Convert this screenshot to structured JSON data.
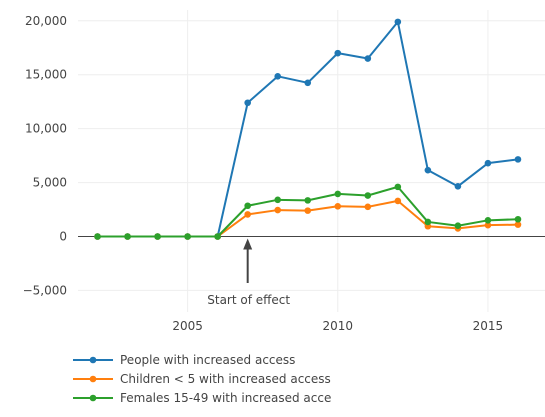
{
  "chart_data": {
    "type": "line",
    "title": "",
    "xlabel": "",
    "ylabel": "",
    "x": [
      2002,
      2003,
      2004,
      2005,
      2006,
      2007,
      2008,
      2009,
      2010,
      2011,
      2012,
      2013,
      2014,
      2015,
      2016
    ],
    "xlim": [
      2001.35,
      2016.9
    ],
    "ylim": [
      -7000,
      21000
    ],
    "x_ticks": [
      2005,
      2010,
      2015
    ],
    "x_tick_labels": [
      "2005",
      "2010",
      "2015"
    ],
    "y_ticks": [
      -5000,
      0,
      5000,
      10000,
      15000,
      20000
    ],
    "y_tick_labels": [
      "−5,000",
      "0",
      "5,000",
      "10,000",
      "15,000",
      "20,000"
    ],
    "grid": true,
    "zero_line": true,
    "legend_position": "bottom-left",
    "series": [
      {
        "name": "People with increased access",
        "color": "#1f77b4",
        "values": [
          0,
          0,
          0,
          0,
          0,
          12400,
          14850,
          14250,
          17000,
          16500,
          19900,
          6150,
          4650,
          6800,
          7150
        ]
      },
      {
        "name": "Children < 5 with increased access",
        "color": "#ff7f0e",
        "values": [
          0,
          0,
          0,
          0,
          0,
          2050,
          2450,
          2400,
          2800,
          2750,
          3300,
          950,
          750,
          1050,
          1100
        ]
      },
      {
        "name": "Females 15-49 with increased acce",
        "color": "#2ca02c",
        "values": [
          0,
          0,
          0,
          0,
          0,
          2850,
          3400,
          3350,
          3950,
          3800,
          4600,
          1350,
          1000,
          1500,
          1600
        ]
      }
    ],
    "annotations": [
      {
        "text": "Start of effect",
        "x": 2007,
        "y": 0,
        "arrow": true
      }
    ]
  }
}
